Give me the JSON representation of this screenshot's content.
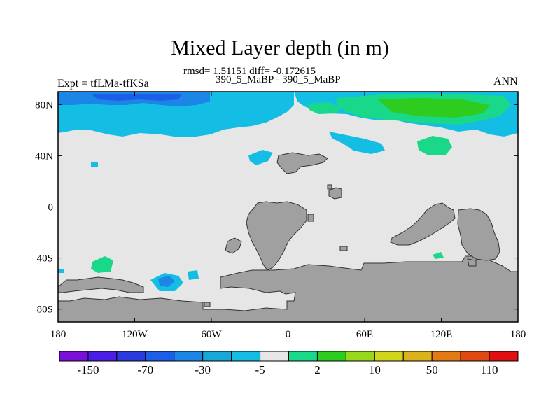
{
  "title": "Mixed Layer depth (in m)",
  "stats": "rmsd= 1.51151 diff= -0.172615",
  "case_label": "390_5_MaBP - 390_5_MaBP",
  "expt_label": "Expt = tfLMa-tfKSa",
  "season_label": "ANN",
  "axes": {
    "x_ticks": [
      {
        "lon": -180,
        "label": "180"
      },
      {
        "lon": -120,
        "label": "120W"
      },
      {
        "lon": -60,
        "label": "60W"
      },
      {
        "lon": 0,
        "label": "0"
      },
      {
        "lon": 60,
        "label": "60E"
      },
      {
        "lon": 120,
        "label": "120E"
      },
      {
        "lon": 180,
        "label": "180"
      }
    ],
    "y_ticks": [
      {
        "lat": 80,
        "label": "80N"
      },
      {
        "lat": 40,
        "label": "40N"
      },
      {
        "lat": 0,
        "label": "0"
      },
      {
        "lat": -40,
        "label": "40S"
      },
      {
        "lat": -80,
        "label": "80S"
      }
    ],
    "lon_range": [
      -180,
      180
    ],
    "lat_range": [
      -90,
      90
    ]
  },
  "colorbar": {
    "colors": [
      "#7a10d8",
      "#4b1ee6",
      "#2a3adc",
      "#1d5ee8",
      "#1b86e6",
      "#17a8d8",
      "#14bde4",
      "#e6e6e6",
      "#19d88a",
      "#2ecc1f",
      "#98d81c",
      "#d0d41a",
      "#dcb21a",
      "#e47a14",
      "#e04a12",
      "#e01010"
    ],
    "labels": [
      "-150",
      "-70",
      "-30",
      "-5",
      "2",
      "10",
      "50",
      "110"
    ]
  },
  "field_colors": {
    "neutral": "#e6e6e6",
    "land": "#a0a0a0",
    "neg_5": "#14bde4",
    "neg_30": "#1b86e6",
    "neg_70": "#1d5ee8",
    "pos_2": "#19d88a",
    "pos_10": "#2ecc1f"
  },
  "chart_data": {
    "type": "heatmap",
    "title": "Mixed Layer depth (in m)",
    "subtitle": "rmsd= 1.51151 diff= -0.172615",
    "variable": "mixed layer depth difference",
    "units": "m",
    "x_axis": "longitude",
    "y_axis": "latitude",
    "xlim": [
      -180,
      180
    ],
    "ylim": [
      -90,
      90
    ],
    "levels": [
      -150,
      -70,
      -30,
      -5,
      2,
      10,
      50,
      110
    ],
    "patches": [
      {
        "region": "Arctic band west of 0",
        "lon": [
          -180,
          0
        ],
        "lat": [
          65,
          80
        ],
        "level": "-5 to -30"
      },
      {
        "region": "North Pacific / North Atlantic high latitudes",
        "lon": [
          -180,
          -30
        ],
        "lat": [
          45,
          80
        ],
        "level": "-5"
      },
      {
        "region": "Arctic Siberian sector",
        "lon": [
          50,
          150
        ],
        "lat": [
          68,
          80
        ],
        "level": "2 to 10"
      },
      {
        "region": "Northern Eurasia margin",
        "lon": [
          20,
          180
        ],
        "lat": [
          55,
          75
        ],
        "level": "-5"
      },
      {
        "region": "North Pacific mid-latitude",
        "lon": [
          90,
          120
        ],
        "lat": [
          38,
          50
        ],
        "level": "2"
      },
      {
        "region": "Southern Ocean Pacific sector",
        "lon": [
          -150,
          -140
        ],
        "lat": [
          -50,
          -42
        ],
        "level": "2"
      },
      {
        "region": "Southern Ocean near Antarctic Peninsula",
        "lon": [
          -100,
          -70
        ],
        "lat": [
          -63,
          -52
        ],
        "level": "-5 to -30"
      }
    ]
  }
}
